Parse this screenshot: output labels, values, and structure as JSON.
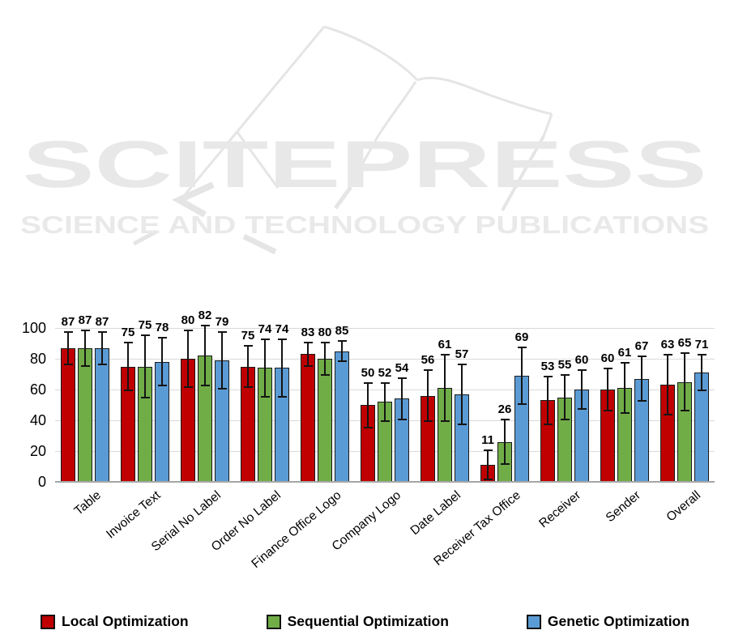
{
  "watermark": {
    "title": "SCITEPRESS",
    "subtitle": "SCIENCE AND TECHNOLOGY PUBLICATIONS",
    "color": "#e8e8e8"
  },
  "chart_data": {
    "type": "bar",
    "title": "",
    "xlabel": "",
    "ylabel": "",
    "ylim": [
      0,
      100
    ],
    "yticks": [
      0,
      20,
      40,
      60,
      80,
      100
    ],
    "grid": true,
    "legend_position": "bottom",
    "error_bars": true,
    "categories": [
      "Table",
      "Invoice Text",
      "Serial No Label",
      "Order No Label",
      "Finance Office Logo",
      "Company Logo",
      "Date Label",
      "Receiver Tax Office",
      "Receiver",
      "Sender",
      "Overall"
    ],
    "series": [
      {
        "name": "Local Optimization",
        "color": "#C00000",
        "values": [
          87,
          75,
          80,
          75,
          83,
          50,
          56,
          11,
          53,
          60,
          63
        ],
        "errors": [
          11,
          16,
          19,
          14,
          8,
          15,
          17,
          10,
          16,
          14,
          20
        ]
      },
      {
        "name": "Sequential Optimization",
        "color": "#70AD47",
        "values": [
          87,
          75,
          82,
          74,
          80,
          52,
          61,
          26,
          55,
          61,
          65
        ],
        "errors": [
          12,
          21,
          20,
          19,
          11,
          13,
          22,
          15,
          15,
          17,
          19
        ]
      },
      {
        "name": "Genetic Optimization",
        "color": "#5B9BD5",
        "values": [
          87,
          78,
          79,
          74,
          85,
          54,
          57,
          69,
          60,
          67,
          71
        ],
        "errors": [
          11,
          16,
          19,
          19,
          7,
          14,
          20,
          19,
          13,
          15,
          12
        ]
      }
    ]
  },
  "colors": {
    "gridline": "#d9d9d9",
    "axis_line": "#a6a6a6",
    "error_bar": "#141414",
    "bar_border": "#1a1a1a",
    "watermark": "#e8e8e8"
  }
}
